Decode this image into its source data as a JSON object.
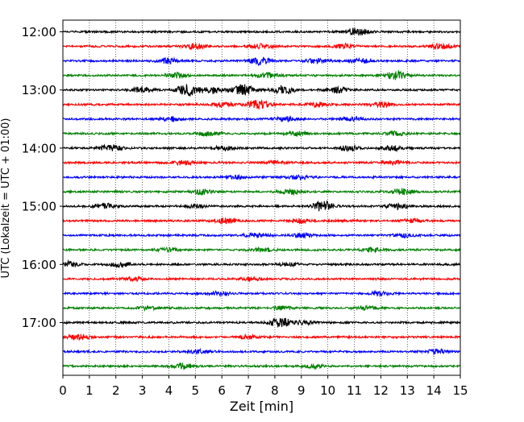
{
  "chart_data": {
    "type": "line",
    "title": "",
    "xlabel": "Zeit  [min]",
    "ylabel": "UTC (Lokalzeit = UTC + 01:00)",
    "xlim": [
      0,
      15
    ],
    "x_ticks": [
      "0",
      "1",
      "2",
      "3",
      "4",
      "5",
      "6",
      "7",
      "8",
      "9",
      "10",
      "11",
      "12",
      "13",
      "14",
      "15"
    ],
    "vertical_grid": "dotted",
    "y_ticks": [
      {
        "label": "12:00",
        "row": 0
      },
      {
        "label": "13:00",
        "row": 4
      },
      {
        "label": "14:00",
        "row": 8
      },
      {
        "label": "15:00",
        "row": 12
      },
      {
        "label": "16:00",
        "row": 16
      },
      {
        "label": "17:00",
        "row": 20
      }
    ],
    "row_interval_minutes": 15,
    "row_count": 24,
    "row_colors": [
      "#000000",
      "#ff0000",
      "#0000ff",
      "#008000"
    ],
    "traces": [
      {
        "start": "12:00",
        "bursts": [
          {
            "x": 11.1,
            "amp": 0.7
          }
        ]
      },
      {
        "start": "12:15",
        "bursts": [
          {
            "x": 5.0,
            "amp": 0.5
          },
          {
            "x": 7.5,
            "amp": 0.45
          },
          {
            "x": 10.7,
            "amp": 0.4
          },
          {
            "x": 14.3,
            "amp": 0.45
          }
        ]
      },
      {
        "start": "12:30",
        "bursts": [
          {
            "x": 4.0,
            "amp": 0.45
          },
          {
            "x": 7.4,
            "amp": 0.7
          },
          {
            "x": 9.6,
            "amp": 0.45
          },
          {
            "x": 11.2,
            "amp": 0.4
          }
        ]
      },
      {
        "start": "12:45",
        "bursts": [
          {
            "x": 4.3,
            "amp": 0.4
          },
          {
            "x": 7.7,
            "amp": 0.45
          },
          {
            "x": 12.6,
            "amp": 0.75
          }
        ]
      },
      {
        "start": "13:00",
        "bursts": [
          {
            "x": 3.0,
            "amp": 0.5
          },
          {
            "x": 4.7,
            "amp": 1.0
          },
          {
            "x": 5.6,
            "amp": 0.6
          },
          {
            "x": 6.8,
            "amp": 1.0
          },
          {
            "x": 8.3,
            "amp": 0.8
          },
          {
            "x": 10.4,
            "amp": 0.5
          }
        ]
      },
      {
        "start": "13:15",
        "bursts": [
          {
            "x": 6.0,
            "amp": 0.4
          },
          {
            "x": 7.4,
            "amp": 0.8
          },
          {
            "x": 9.6,
            "amp": 0.4
          },
          {
            "x": 12.0,
            "amp": 0.4
          }
        ]
      },
      {
        "start": "13:30",
        "bursts": [
          {
            "x": 4.1,
            "amp": 0.4
          },
          {
            "x": 8.4,
            "amp": 0.4
          },
          {
            "x": 10.9,
            "amp": 0.35
          }
        ]
      },
      {
        "start": "13:45",
        "bursts": [
          {
            "x": 5.5,
            "amp": 0.4
          },
          {
            "x": 8.8,
            "amp": 0.35
          },
          {
            "x": 12.6,
            "amp": 0.35
          }
        ]
      },
      {
        "start": "14:00",
        "bursts": [
          {
            "x": 1.8,
            "amp": 0.6
          },
          {
            "x": 6.1,
            "amp": 0.35
          },
          {
            "x": 10.8,
            "amp": 0.4
          },
          {
            "x": 12.4,
            "amp": 0.45
          }
        ]
      },
      {
        "start": "14:15",
        "bursts": [
          {
            "x": 4.5,
            "amp": 0.35
          },
          {
            "x": 8.0,
            "amp": 0.3
          },
          {
            "x": 12.5,
            "amp": 0.35
          }
        ]
      },
      {
        "start": "14:30",
        "bursts": [
          {
            "x": 6.5,
            "amp": 0.3
          },
          {
            "x": 8.9,
            "amp": 0.35
          }
        ]
      },
      {
        "start": "14:45",
        "bursts": [
          {
            "x": 5.3,
            "amp": 0.45
          },
          {
            "x": 8.6,
            "amp": 0.4
          },
          {
            "x": 12.8,
            "amp": 0.55
          }
        ]
      },
      {
        "start": "15:00",
        "bursts": [
          {
            "x": 1.6,
            "amp": 0.5
          },
          {
            "x": 5.0,
            "amp": 0.35
          },
          {
            "x": 9.8,
            "amp": 0.9
          },
          {
            "x": 12.6,
            "amp": 0.5
          }
        ]
      },
      {
        "start": "15:15",
        "bursts": [
          {
            "x": 6.1,
            "amp": 0.45
          },
          {
            "x": 9.0,
            "amp": 0.35
          },
          {
            "x": 13.2,
            "amp": 0.35
          }
        ]
      },
      {
        "start": "15:30",
        "bursts": [
          {
            "x": 7.3,
            "amp": 0.35
          },
          {
            "x": 9.1,
            "amp": 0.35
          },
          {
            "x": 12.9,
            "amp": 0.3
          }
        ]
      },
      {
        "start": "15:45",
        "bursts": [
          {
            "x": 4.0,
            "amp": 0.3
          },
          {
            "x": 7.5,
            "amp": 0.3
          },
          {
            "x": 11.7,
            "amp": 0.35
          }
        ]
      },
      {
        "start": "16:00",
        "bursts": [
          {
            "x": 0.2,
            "amp": 0.5
          },
          {
            "x": 2.2,
            "amp": 0.45
          },
          {
            "x": 8.5,
            "amp": 0.3
          }
        ]
      },
      {
        "start": "16:15",
        "bursts": [
          {
            "x": 2.7,
            "amp": 0.4
          },
          {
            "x": 7.2,
            "amp": 0.3
          }
        ]
      },
      {
        "start": "16:30",
        "bursts": [
          {
            "x": 5.9,
            "amp": 0.3
          },
          {
            "x": 12.0,
            "amp": 0.3
          }
        ]
      },
      {
        "start": "16:45",
        "bursts": [
          {
            "x": 3.2,
            "amp": 0.3
          },
          {
            "x": 8.3,
            "amp": 0.3
          },
          {
            "x": 11.5,
            "amp": 0.3
          }
        ]
      },
      {
        "start": "17:00",
        "bursts": [
          {
            "x": 8.2,
            "amp": 0.9
          },
          {
            "x": 9.1,
            "amp": 0.35
          }
        ]
      },
      {
        "start": "17:15",
        "bursts": [
          {
            "x": 0.6,
            "amp": 0.45
          },
          {
            "x": 7.0,
            "amp": 0.3
          }
        ]
      },
      {
        "start": "17:30",
        "bursts": [
          {
            "x": 5.2,
            "amp": 0.3
          },
          {
            "x": 14.1,
            "amp": 0.4
          }
        ]
      },
      {
        "start": "17:45",
        "bursts": [
          {
            "x": 4.6,
            "amp": 0.5
          },
          {
            "x": 9.5,
            "amp": 0.3
          }
        ]
      }
    ]
  }
}
